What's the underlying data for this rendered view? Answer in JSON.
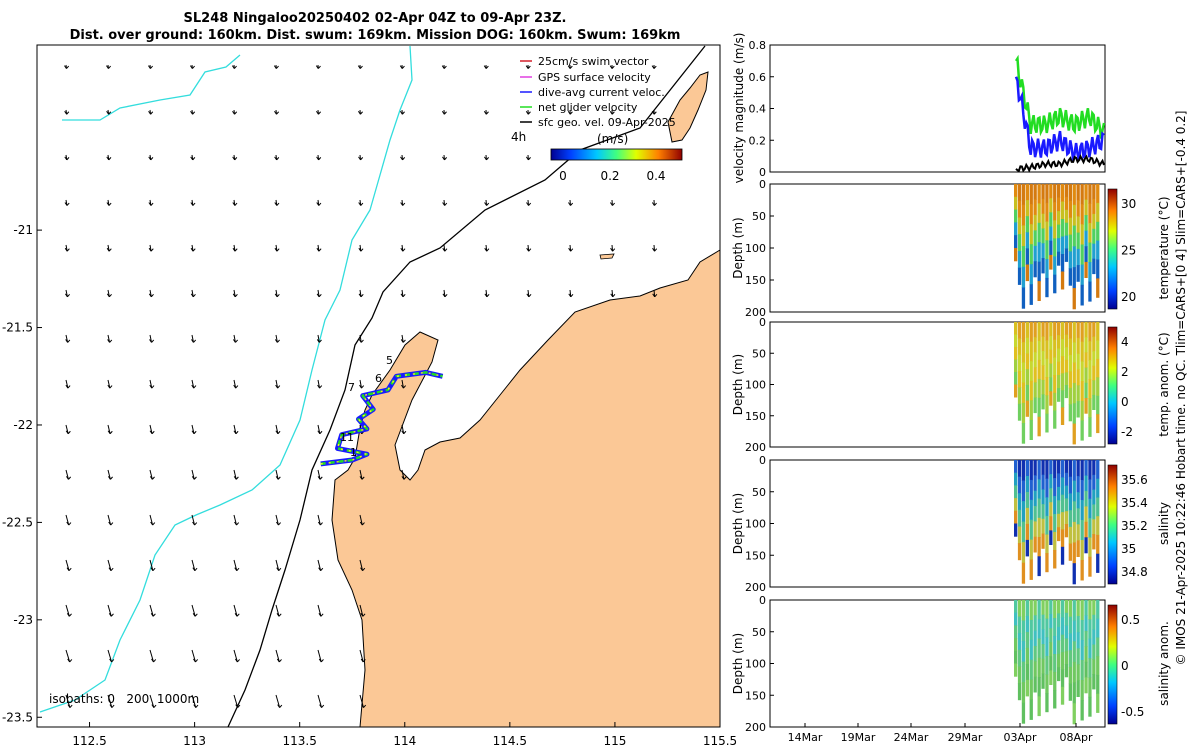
{
  "title": {
    "line1": "SL248 Ningaloo20250402 02-Apr 04Z to 09-Apr 23Z.",
    "line2": "Dist. over ground: 160km. Dist. swum: 169km. Mission DOG: 160km. Swum: 169km"
  },
  "map": {
    "x_ticks": [
      "112.5",
      "113",
      "113.5",
      "114",
      "114.5",
      "115",
      "115.5"
    ],
    "y_ticks": [
      "-21",
      "-21.5",
      "-22",
      "-22.5",
      "-23",
      "-23.5"
    ],
    "xlim": [
      112.25,
      115.5
    ],
    "ylim": [
      -23.55,
      -20.05
    ],
    "legend": [
      {
        "label": "25cm/s swim vector",
        "color": "#d4202a"
      },
      {
        "label": "GPS surface velocity",
        "color": "#e040e0"
      },
      {
        "label": "dive-avg current veloc.",
        "color": "#1a1aff"
      },
      {
        "label": "net glider velocity",
        "color": "#22dd22"
      },
      {
        "label": "sfc geo. vel. 09-Apr-2025",
        "color": "#000000"
      }
    ],
    "colorbar_label": "(m/s)",
    "colorbar_ticks": [
      "0",
      "0.2",
      "0.4"
    ],
    "colorbar_range": [
      0,
      0.5
    ],
    "colorbar_note": "4h",
    "isobaths_label": "isobaths: 0   200  1000m",
    "track_labels": [
      "5",
      "6",
      "7",
      "11",
      "1"
    ],
    "land_color": "#fbc896",
    "isobath_200_color": "#000000",
    "isobath_1000_color": "#33dddd"
  },
  "panels": {
    "velocity": {
      "ylabel": "velocity magnitude (m/s)",
      "y_ticks": [
        "0",
        "0.2",
        "0.4",
        "0.6",
        "0.8"
      ],
      "ylim": [
        0,
        0.8
      ],
      "colors": {
        "net": "#22dd22",
        "dive": "#1a1aff",
        "sfc": "#000000"
      }
    },
    "temperature": {
      "ylabel": "Depth (m)",
      "cbar_label": "temperature (°C)",
      "cbar_ticks": [
        "30",
        "25",
        "20"
      ]
    },
    "temp_anom": {
      "ylabel": "Depth (m)",
      "cbar_label": "temp. anom. (°C)",
      "cbar_ticks": [
        "4",
        "2",
        "0",
        "-2"
      ]
    },
    "salinity": {
      "ylabel": "Depth (m)",
      "cbar_label": "salinity",
      "cbar_ticks": [
        "35.6",
        "35.4",
        "35.2",
        "35",
        "34.8"
      ]
    },
    "sal_anom": {
      "ylabel": "Depth (m)",
      "cbar_label": "salinity anom.",
      "cbar_ticks": [
        "0.5",
        "0",
        "-0.5"
      ]
    },
    "depth_ticks": [
      "0",
      "50",
      "100",
      "150",
      "200"
    ],
    "depth_range": [
      0,
      200
    ],
    "time_ticks": [
      "14Mar",
      "19Mar",
      "24Mar",
      "29Mar",
      "03Apr",
      "08Apr"
    ]
  },
  "side_note": "© IMOS 21-Apr-2025 10:22:46 Hobart time. no QC. Tlim=CARS+[0 4] Slim=CARS+[-0.4 0.2]",
  "chart_data": [
    {
      "type": "map",
      "title": "SL248 Ningaloo20250402 02-Apr 04Z to 09-Apr 23Z.",
      "xlim": [
        112.25,
        115.5
      ],
      "ylim": [
        -23.55,
        -20.05
      ],
      "track": [
        {
          "lon": 113.6,
          "lat": -22.2
        },
        {
          "lon": 113.75,
          "lat": -22.18
        },
        {
          "lon": 113.82,
          "lat": -22.15
        },
        {
          "lon": 113.68,
          "lat": -22.12
        },
        {
          "lon": 113.7,
          "lat": -22.05
        },
        {
          "lon": 113.82,
          "lat": -22.02
        },
        {
          "lon": 113.78,
          "lat": -21.97
        },
        {
          "lon": 113.85,
          "lat": -21.92
        },
        {
          "lon": 113.8,
          "lat": -21.85
        },
        {
          "lon": 113.92,
          "lat": -21.82
        },
        {
          "lon": 113.96,
          "lat": -21.75
        },
        {
          "lon": 114.1,
          "lat": -21.73
        },
        {
          "lon": 114.18,
          "lat": -21.75
        }
      ]
    },
    {
      "type": "line",
      "ylabel": "velocity magnitude (m/s)",
      "ylim": [
        0,
        0.8
      ],
      "x": [
        "03Apr",
        "04Apr",
        "05Apr",
        "06Apr",
        "07Apr",
        "08Apr",
        "09Apr"
      ],
      "series": [
        {
          "values": [
            0.7,
            0.3,
            0.3,
            0.35,
            0.3,
            0.35,
            0.25
          ]
        },
        {
          "values": [
            0.6,
            0.15,
            0.15,
            0.2,
            0.12,
            0.15,
            0.2
          ]
        },
        {
          "values": [
            0.02,
            0.03,
            0.05,
            0.05,
            0.08,
            0.08,
            0.05
          ]
        }
      ]
    }
  ]
}
